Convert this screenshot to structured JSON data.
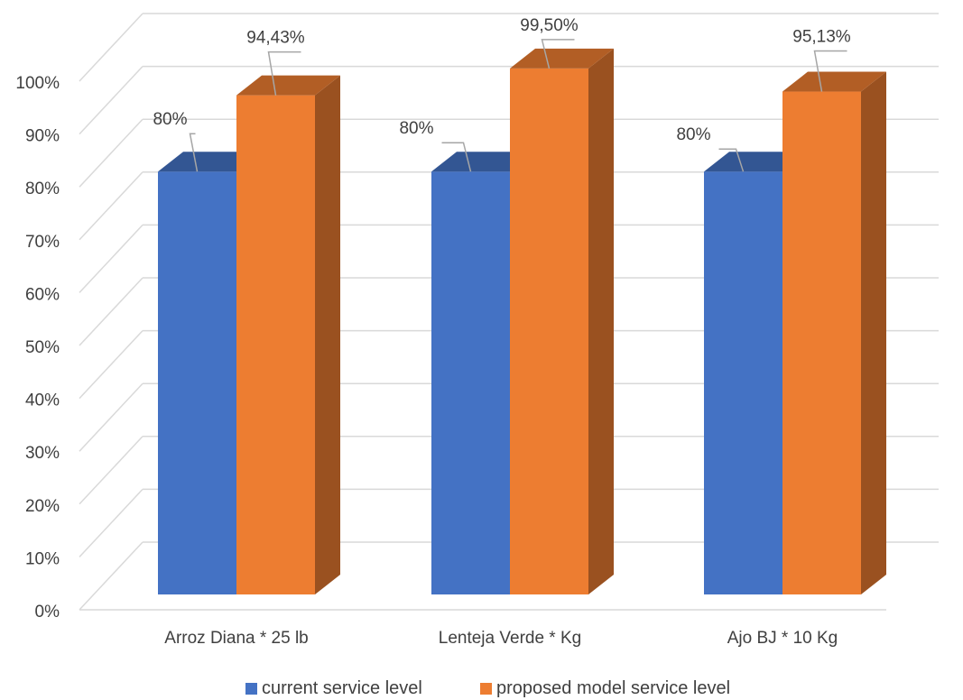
{
  "chart_data": {
    "type": "bar",
    "categories": [
      "Arroz Diana * 25 lb",
      "Lenteja Verde * Kg",
      "Ajo BJ * 10 Kg"
    ],
    "series": [
      {
        "name": "current service level",
        "values": [
          80,
          80,
          80
        ],
        "labels": [
          "80%",
          "80%",
          "80%"
        ],
        "color": "#4472C4"
      },
      {
        "name": "proposed model service level",
        "values": [
          94.43,
          99.5,
          95.13
        ],
        "labels": [
          "94,43%",
          "99,50%",
          "95,13%"
        ],
        "color": "#ED7D31"
      }
    ],
    "ylim": [
      0,
      100
    ],
    "yticks": [
      "0%",
      "10%",
      "20%",
      "30%",
      "40%",
      "50%",
      "60%",
      "70%",
      "80%",
      "90%",
      "100%"
    ],
    "grid": true,
    "legend": "bottom",
    "style": "3d-column"
  }
}
